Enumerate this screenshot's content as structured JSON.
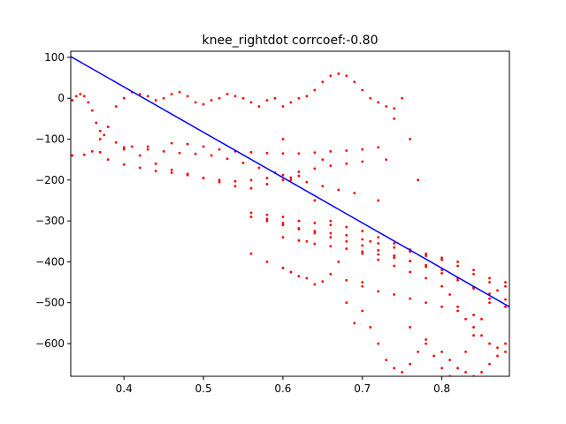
{
  "chart_data": {
    "type": "scatter",
    "title": "knee_rightdot corrcoef:-0.80",
    "xlabel": "",
    "ylabel": "",
    "xlim": [
      0.333,
      0.885
    ],
    "ylim": [
      -680,
      115
    ],
    "x_ticks": [
      0.4,
      0.5,
      0.6,
      0.7,
      0.8
    ],
    "x_tick_labels": [
      "0.4",
      "0.5",
      "0.6",
      "0.7",
      "0.8"
    ],
    "y_ticks": [
      100,
      0,
      -100,
      -200,
      -300,
      -400,
      -500,
      -600
    ],
    "y_tick_labels": [
      "100",
      "0",
      "−100",
      "−200",
      "−300",
      "−400",
      "−500",
      "−600"
    ],
    "grid": false,
    "legend": "none",
    "colors": {
      "scatter": "#ff0000",
      "fit_line": "#0000ff"
    },
    "fit_line": {
      "x": [
        0.333,
        0.885
      ],
      "y": [
        102,
        -510
      ]
    },
    "series": [
      {
        "kind": "scatter",
        "x": [
          0.335,
          0.34,
          0.345,
          0.35,
          0.355,
          0.36,
          0.365,
          0.37,
          0.375,
          0.38,
          0.39,
          0.4,
          0.41,
          0.42,
          0.43,
          0.44,
          0.45,
          0.46,
          0.47,
          0.48,
          0.49,
          0.5,
          0.51,
          0.52,
          0.53,
          0.54,
          0.55,
          0.56,
          0.57,
          0.58,
          0.59,
          0.6,
          0.61,
          0.62,
          0.63,
          0.64,
          0.65,
          0.66,
          0.67,
          0.68,
          0.69,
          0.7,
          0.71,
          0.72,
          0.73,
          0.74,
          0.335,
          0.35,
          0.37,
          0.4,
          0.43,
          0.46,
          0.48,
          0.5,
          0.52,
          0.54,
          0.56,
          0.58,
          0.6,
          0.62,
          0.64,
          0.66,
          0.68,
          0.7,
          0.72,
          0.36,
          0.38,
          0.4,
          0.42,
          0.44,
          0.46,
          0.48,
          0.5,
          0.52,
          0.54,
          0.56,
          0.58,
          0.6,
          0.62,
          0.64,
          0.66,
          0.68,
          0.7,
          0.37,
          0.39,
          0.41,
          0.43,
          0.45,
          0.47,
          0.49,
          0.51,
          0.53,
          0.55,
          0.57,
          0.59,
          0.61,
          0.63,
          0.65,
          0.67,
          0.69,
          0.4,
          0.42,
          0.44,
          0.46,
          0.48,
          0.5,
          0.52,
          0.54,
          0.56,
          0.58,
          0.6,
          0.62,
          0.56,
          0.58,
          0.6,
          0.62,
          0.64,
          0.66,
          0.68,
          0.7,
          0.72,
          0.74,
          0.76,
          0.78,
          0.8,
          0.82,
          0.84,
          0.86,
          0.88,
          0.56,
          0.58,
          0.6,
          0.62,
          0.64,
          0.66,
          0.68,
          0.7,
          0.72,
          0.74,
          0.76,
          0.78,
          0.8,
          0.82,
          0.84,
          0.86,
          0.58,
          0.6,
          0.62,
          0.64,
          0.66,
          0.68,
          0.7,
          0.72,
          0.74,
          0.76,
          0.78,
          0.8,
          0.82,
          0.84,
          0.86,
          0.88,
          0.56,
          0.58,
          0.6,
          0.61,
          0.62,
          0.63,
          0.64,
          0.65,
          0.66,
          0.68,
          0.7,
          0.72,
          0.74,
          0.76,
          0.78,
          0.8,
          0.82,
          0.84,
          0.6,
          0.62,
          0.64,
          0.66,
          0.68,
          0.7,
          0.72,
          0.74,
          0.76,
          0.78,
          0.8,
          0.82,
          0.84,
          0.86,
          0.88,
          0.7,
          0.72,
          0.74,
          0.76,
          0.78,
          0.8,
          0.81,
          0.82,
          0.83,
          0.84,
          0.85,
          0.86,
          0.87,
          0.88,
          0.76,
          0.78,
          0.8,
          0.81,
          0.82,
          0.83,
          0.84,
          0.85,
          0.86,
          0.87,
          0.88,
          0.6,
          0.61,
          0.62,
          0.63,
          0.64,
          0.65,
          0.66,
          0.67,
          0.68,
          0.69,
          0.7,
          0.71,
          0.72,
          0.73,
          0.74,
          0.75,
          0.76,
          0.77,
          0.7,
          0.71,
          0.72,
          0.73,
          0.74,
          0.75,
          0.76,
          0.77,
          0.78,
          0.79,
          0.8,
          0.81,
          0.82,
          0.83,
          0.84,
          0.85,
          0.86,
          0.87,
          0.88
        ],
        "y": [
          -5,
          5,
          10,
          5,
          -10,
          -30,
          -60,
          -80,
          -90,
          -70,
          -20,
          0,
          15,
          10,
          5,
          -5,
          0,
          10,
          15,
          5,
          -10,
          -15,
          -5,
          0,
          10,
          5,
          0,
          -10,
          -20,
          -5,
          0,
          -20,
          -10,
          0,
          5,
          20,
          40,
          55,
          60,
          55,
          40,
          20,
          0,
          -10,
          -20,
          -25,
          -140,
          -138,
          -132,
          -125,
          -118,
          -110,
          -112,
          -118,
          -125,
          -130,
          -132,
          -134,
          -135,
          -135,
          -133,
          -130,
          -128,
          -125,
          -120,
          -130,
          -150,
          -162,
          -170,
          -178,
          -182,
          -188,
          -195,
          -200,
          -203,
          -200,
          -195,
          -188,
          -180,
          -172,
          -165,
          -160,
          -155,
          -100,
          -108,
          -118,
          -125,
          -130,
          -134,
          -136,
          -140,
          -148,
          -158,
          -170,
          -182,
          -194,
          -205,
          -215,
          -224,
          -232,
          -120,
          -140,
          -160,
          -175,
          -185,
          -195,
          -205,
          -215,
          -220,
          -210,
          -200,
          -190,
          -280,
          -285,
          -290,
          -300,
          -305,
          -310,
          -315,
          -325,
          -340,
          -355,
          -370,
          -380,
          -390,
          -400,
          -420,
          -440,
          -460,
          -290,
          -295,
          -305,
          -318,
          -325,
          -330,
          -335,
          -345,
          -355,
          -365,
          -375,
          -385,
          -395,
          -410,
          -430,
          -450,
          -300,
          -310,
          -320,
          -330,
          -340,
          -350,
          -360,
          -372,
          -385,
          -398,
          -412,
          -428,
          -445,
          -462,
          -478,
          -492,
          -380,
          -400,
          -415,
          -425,
          -435,
          -440,
          -455,
          -448,
          -430,
          -445,
          -460,
          -472,
          -480,
          -490,
          -500,
          -510,
          -520,
          -530,
          -340,
          -348,
          -356,
          -362,
          -368,
          -375,
          -382,
          -390,
          -398,
          -408,
          -420,
          -440,
          -465,
          -490,
          -510,
          -380,
          -395,
          -410,
          -425,
          -440,
          -460,
          -480,
          -510,
          -540,
          -560,
          -580,
          -600,
          -610,
          -620,
          -560,
          -590,
          -620,
          -640,
          -660,
          -670,
          -680,
          -670,
          -650,
          -630,
          -600,
          -100,
          -200,
          -300,
          -350,
          -250,
          -150,
          -300,
          -400,
          -500,
          -550,
          -450,
          -350,
          -250,
          -150,
          -50,
          0,
          -100,
          -200,
          -520,
          -560,
          -600,
          -640,
          -660,
          -670,
          -650,
          -620,
          -600,
          -630,
          -660,
          -680,
          -660,
          -620,
          -580,
          -540,
          -500,
          -470,
          -450
        ]
      }
    ]
  }
}
